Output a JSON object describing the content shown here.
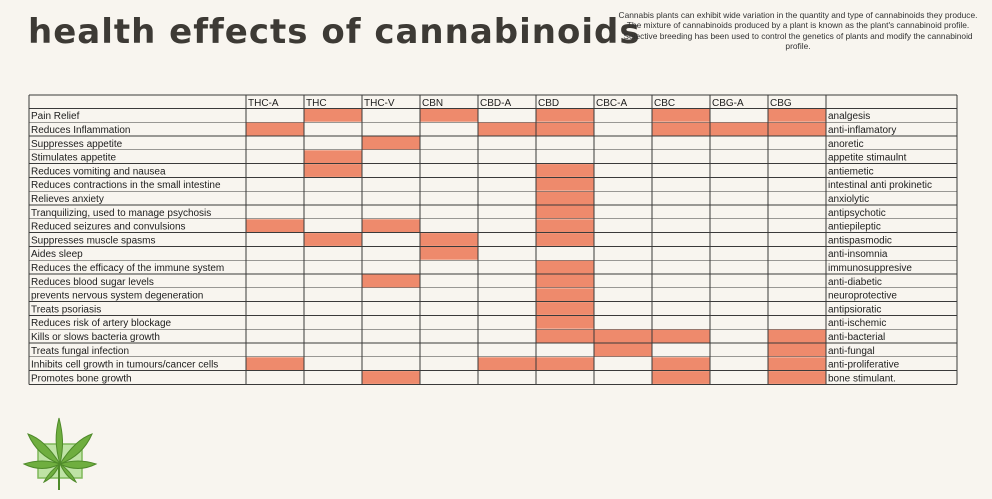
{
  "header": {
    "title": "health effects of cannabinoids",
    "intro": "Cannabis plants can exhibit wide variation in the quantity and type of cannabinoids they produce. The mixture of cannabinoids produced by a plant is known as the plant's cannabinoid profile. Selective breeding has been used to control the genetics of plants and modify the cannabinoid profile."
  },
  "colors": {
    "marked": "#ee8a6c",
    "grid": "#3a3a3a",
    "background": "#f8f5ef",
    "logo": "#6fae3f"
  },
  "logo": {
    "icon": "cannabis-leaf-icon"
  },
  "chart_data": {
    "type": "table",
    "columns": [
      "THC-A",
      "THC",
      "THC-V",
      "CBN",
      "CBD-A",
      "CBD",
      "CBC-A",
      "CBC",
      "CBG-A",
      "CBG"
    ],
    "rows": [
      {
        "effect": "Pain Relief",
        "term": "analgesis",
        "marks": [
          0,
          1,
          0,
          1,
          0,
          1,
          0,
          1,
          0,
          1
        ]
      },
      {
        "effect": "Reduces Inflammation",
        "term": "anti-inflamatory",
        "marks": [
          1,
          0,
          0,
          0,
          1,
          1,
          0,
          1,
          1,
          1
        ]
      },
      {
        "effect": "Suppresses appetite",
        "term": "anoretic",
        "marks": [
          0,
          0,
          1,
          0,
          0,
          0,
          0,
          0,
          0,
          0
        ]
      },
      {
        "effect": "Stimulates appetite",
        "term": "appetite stimaulnt",
        "marks": [
          0,
          1,
          0,
          0,
          0,
          0,
          0,
          0,
          0,
          0
        ]
      },
      {
        "effect": "Reduces vomiting and nausea",
        "term": "antiemetic",
        "marks": [
          0,
          1,
          0,
          0,
          0,
          1,
          0,
          0,
          0,
          0
        ]
      },
      {
        "effect": "Reduces contractions in the small intestine",
        "term": "intestinal anti prokinetic",
        "marks": [
          0,
          0,
          0,
          0,
          0,
          1,
          0,
          0,
          0,
          0
        ]
      },
      {
        "effect": "Relieves anxiety",
        "term": "anxiolytic",
        "marks": [
          0,
          0,
          0,
          0,
          0,
          1,
          0,
          0,
          0,
          0
        ]
      },
      {
        "effect": "Tranquilizing, used to manage psychosis",
        "term": "antipsychotic",
        "marks": [
          0,
          0,
          0,
          0,
          0,
          1,
          0,
          0,
          0,
          0
        ]
      },
      {
        "effect": "Reduced seizures and convulsions",
        "term": "antiepileptic",
        "marks": [
          1,
          0,
          1,
          0,
          0,
          1,
          0,
          0,
          0,
          0
        ]
      },
      {
        "effect": "Suppresses muscle spasms",
        "term": "antispasmodic",
        "marks": [
          0,
          1,
          0,
          1,
          0,
          1,
          0,
          0,
          0,
          0
        ]
      },
      {
        "effect": "Aides sleep",
        "term": "anti-insomnia",
        "marks": [
          0,
          0,
          0,
          1,
          0,
          0,
          0,
          0,
          0,
          0
        ]
      },
      {
        "effect": "Reduces the efficacy of the immune system",
        "term": "immunosuppresive",
        "marks": [
          0,
          0,
          0,
          0,
          0,
          1,
          0,
          0,
          0,
          0
        ]
      },
      {
        "effect": "Reduces blood sugar levels",
        "term": "anti-diabetic",
        "marks": [
          0,
          0,
          1,
          0,
          0,
          1,
          0,
          0,
          0,
          0
        ]
      },
      {
        "effect": "prevents nervous system degeneration",
        "term": "neuroprotective",
        "marks": [
          0,
          0,
          0,
          0,
          0,
          1,
          0,
          0,
          0,
          0
        ]
      },
      {
        "effect": "Treats psoriasis",
        "term": "antipsioratic",
        "marks": [
          0,
          0,
          0,
          0,
          0,
          1,
          0,
          0,
          0,
          0
        ]
      },
      {
        "effect": "Reduces risk of artery blockage",
        "term": "anti-ischemic",
        "marks": [
          0,
          0,
          0,
          0,
          0,
          1,
          0,
          0,
          0,
          0
        ]
      },
      {
        "effect": "Kills or slows bacteria growth",
        "term": "anti-bacterial",
        "marks": [
          0,
          0,
          0,
          0,
          0,
          1,
          1,
          1,
          0,
          1
        ]
      },
      {
        "effect": "Treats fungal infection",
        "term": "anti-fungal",
        "marks": [
          0,
          0,
          0,
          0,
          0,
          0,
          1,
          0,
          0,
          1
        ]
      },
      {
        "effect": "Inhibits cell growth in tumours/cancer cells",
        "term": "anti-proliferative",
        "marks": [
          1,
          0,
          0,
          0,
          1,
          1,
          0,
          1,
          0,
          1
        ]
      },
      {
        "effect": "Promotes bone growth",
        "term": "bone stimulant.",
        "marks": [
          0,
          0,
          1,
          0,
          0,
          0,
          0,
          1,
          0,
          1
        ]
      }
    ]
  }
}
